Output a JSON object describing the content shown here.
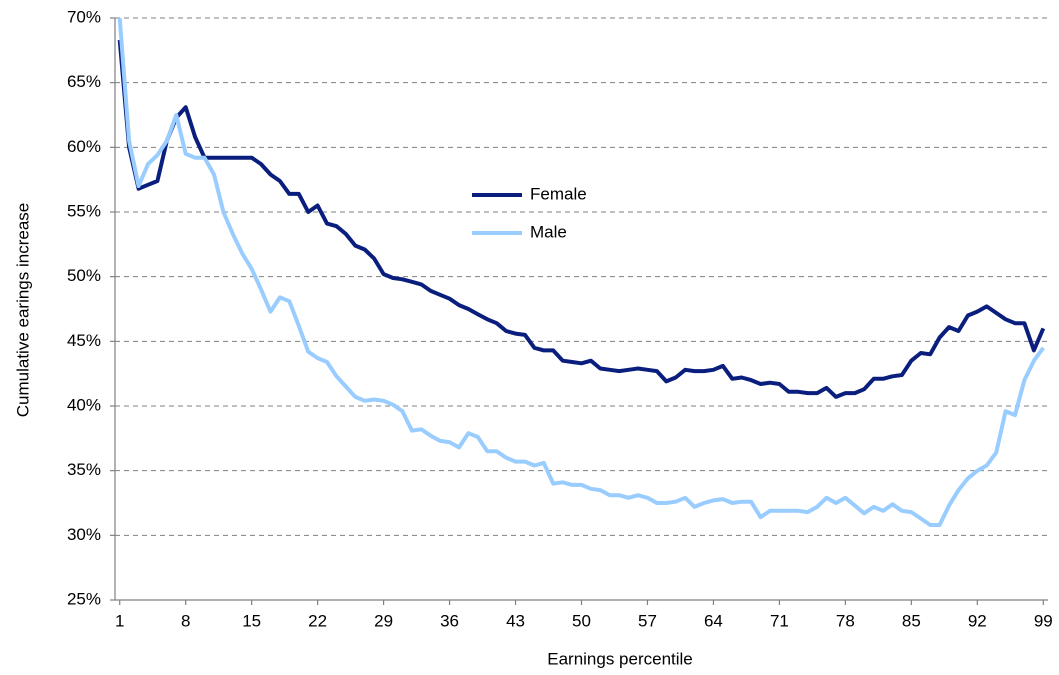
{
  "chart_data": {
    "type": "line",
    "x_label": "Earnings percentile",
    "y_label": "Cumulative earings increase",
    "x": [
      1,
      2,
      3,
      4,
      5,
      6,
      7,
      8,
      9,
      10,
      11,
      12,
      13,
      14,
      15,
      16,
      17,
      18,
      19,
      20,
      21,
      22,
      23,
      24,
      25,
      26,
      27,
      28,
      29,
      30,
      31,
      32,
      33,
      34,
      35,
      36,
      37,
      38,
      39,
      40,
      41,
      42,
      43,
      44,
      45,
      46,
      47,
      48,
      49,
      50,
      51,
      52,
      53,
      54,
      55,
      56,
      57,
      58,
      59,
      60,
      61,
      62,
      63,
      64,
      65,
      66,
      67,
      68,
      69,
      70,
      71,
      72,
      73,
      74,
      75,
      76,
      77,
      78,
      79,
      80,
      81,
      82,
      83,
      84,
      85,
      86,
      87,
      88,
      89,
      90,
      91,
      92,
      93,
      94,
      95,
      96,
      97,
      98,
      99
    ],
    "series": [
      {
        "name": "Female",
        "color": "#0a1f7d",
        "values": [
          68.3,
          60,
          56.8,
          57.1,
          57.4,
          60.5,
          62.3,
          63.1,
          60.8,
          59.2,
          59.2,
          59.2,
          59.2,
          59.2,
          59.2,
          58.7,
          57.9,
          57.4,
          56.4,
          56.4,
          55,
          55.5,
          54.1,
          53.9,
          53.3,
          52.4,
          52.1,
          51.4,
          50.2,
          49.9,
          49.8,
          49.6,
          49.4,
          48.9,
          48.6,
          48.3,
          47.8,
          47.5,
          47.1,
          46.7,
          46.4,
          45.8,
          45.6,
          45.5,
          44.5,
          44.3,
          44.3,
          43.5,
          43.4,
          43.3,
          43.5,
          42.9,
          42.8,
          42.7,
          42.8,
          42.9,
          42.8,
          42.7,
          41.9,
          42.2,
          42.8,
          42.7,
          42.7,
          42.8,
          43.1,
          42.1,
          42.2,
          42,
          41.7,
          41.8,
          41.7,
          41.1,
          41.1,
          41,
          41,
          41.4,
          40.7,
          41,
          41,
          41.3,
          42.1,
          42.1,
          42.3,
          42.4,
          43.5,
          44.1,
          44,
          45.3,
          46.1,
          45.8,
          47,
          47.3,
          47.7,
          47.2,
          46.7,
          46.4,
          46.4,
          44.3,
          46
        ]
      },
      {
        "name": "Male",
        "color": "#99ccff",
        "values": [
          70,
          60.5,
          57,
          58.7,
          59.4,
          60.5,
          62.5,
          59.5,
          59.2,
          59.2,
          57.9,
          55,
          53.3,
          51.8,
          50.6,
          49,
          47.3,
          48.4,
          48.1,
          46.2,
          44.2,
          43.7,
          43.4,
          42.3,
          41.5,
          40.7,
          40.4,
          40.5,
          40.4,
          40.1,
          39.6,
          38.1,
          38.2,
          37.7,
          37.3,
          37.2,
          36.8,
          37.9,
          37.6,
          36.5,
          36.5,
          36,
          35.7,
          35.7,
          35.4,
          35.6,
          34,
          34.1,
          33.9,
          33.9,
          33.6,
          33.5,
          33.1,
          33.1,
          32.9,
          33.1,
          32.9,
          32.5,
          32.5,
          32.6,
          32.9,
          32.2,
          32.5,
          32.7,
          32.8,
          32.5,
          32.6,
          32.6,
          31.4,
          31.9,
          31.9,
          31.9,
          31.9,
          31.8,
          32.2,
          32.9,
          32.5,
          32.9,
          32.3,
          31.7,
          32.2,
          31.9,
          32.4,
          31.9,
          31.8,
          31.3,
          30.8,
          30.8,
          32.3,
          33.5,
          34.4,
          35,
          35.4,
          36.4,
          39.6,
          39.3,
          42,
          43.5,
          44.5
        ]
      }
    ],
    "xlim": [
      0.5,
      99.5
    ],
    "xticks": [
      1,
      8,
      15,
      22,
      29,
      36,
      43,
      50,
      57,
      64,
      71,
      78,
      85,
      92,
      99
    ],
    "ylim": [
      25,
      70
    ],
    "yticks": [
      {
        "value": 25,
        "label": "25%"
      },
      {
        "value": 30,
        "label": "30%"
      },
      {
        "value": 35,
        "label": "35%"
      },
      {
        "value": 40,
        "label": "40%"
      },
      {
        "value": 45,
        "label": "45%"
      },
      {
        "value": 50,
        "label": "50%"
      },
      {
        "value": 55,
        "label": "55%"
      },
      {
        "value": 60,
        "label": "60%"
      },
      {
        "value": 65,
        "label": "65%"
      },
      {
        "value": 70,
        "label": "70%"
      }
    ],
    "grid": true,
    "legend": "upper center"
  }
}
